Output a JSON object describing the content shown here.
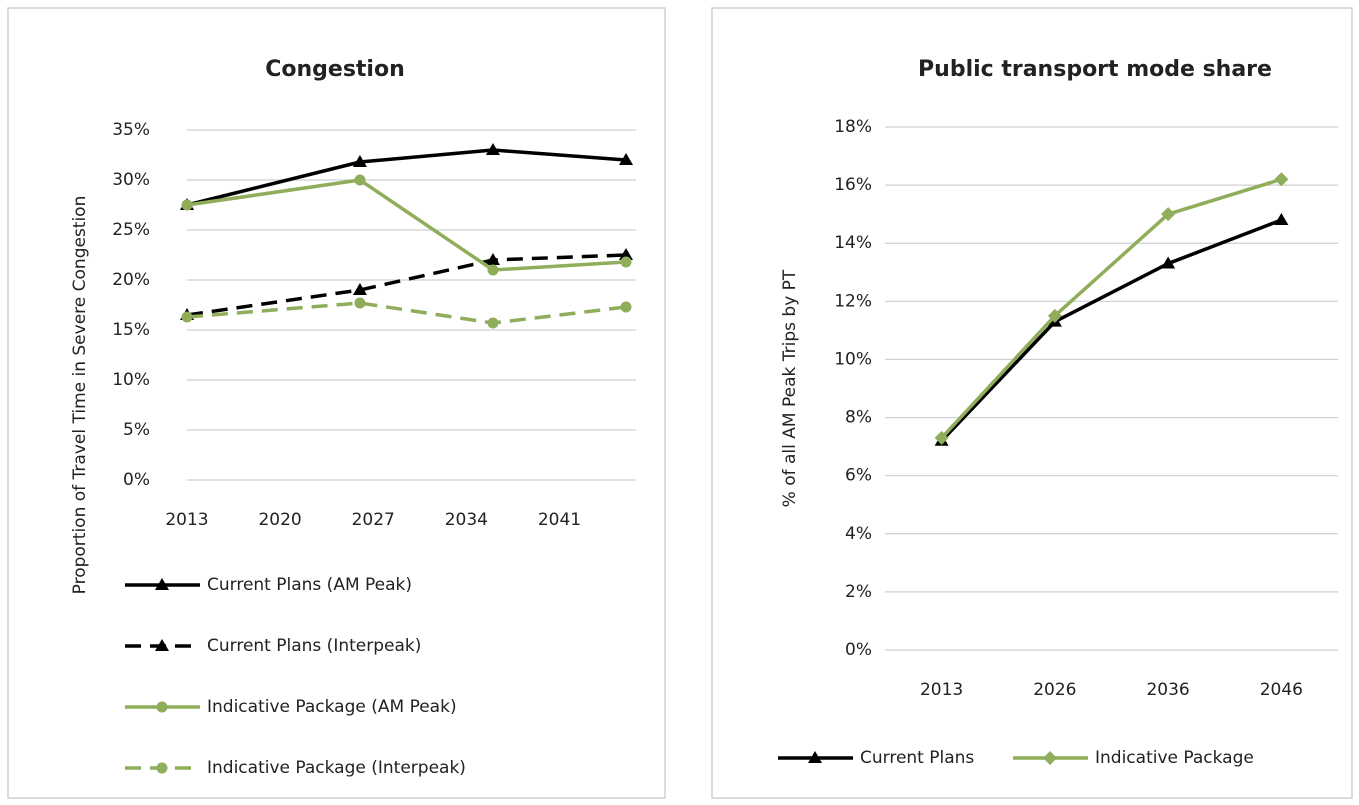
{
  "chart_data": [
    {
      "type": "line",
      "title": "Congestion",
      "y_label": "Proportion of Travel Time in Severe Congestion",
      "x": [
        2013,
        2026,
        2036,
        2046
      ],
      "xlim": [
        2013,
        2046
      ],
      "xticks": [
        2013,
        2020,
        2027,
        2034,
        2041
      ],
      "ylim": [
        0,
        35
      ],
      "yticks": [
        {
          "value": 0,
          "label": "0%"
        },
        {
          "value": 5,
          "label": "5%"
        },
        {
          "value": 10,
          "label": "10%"
        },
        {
          "value": 15,
          "label": "15%"
        },
        {
          "value": 20,
          "label": "20%"
        },
        {
          "value": 25,
          "label": "25%"
        },
        {
          "value": 30,
          "label": "30%"
        },
        {
          "value": 35,
          "label": "35%"
        }
      ],
      "grid": true,
      "legend": "bottom",
      "series": [
        {
          "name": "Current Plans (AM Peak)",
          "color": "#000000",
          "dash": false,
          "marker": "triangle",
          "values": [
            27.5,
            31.8,
            33,
            32
          ]
        },
        {
          "name": "Current Plans (Interpeak)",
          "color": "#000000",
          "dash": true,
          "marker": "triangle",
          "values": [
            16.5,
            19,
            22,
            22.5
          ]
        },
        {
          "name": "Indicative Package (AM Peak)",
          "color": "#8fad5a",
          "dash": false,
          "marker": "circle",
          "values": [
            27.5,
            30,
            21,
            21.8
          ]
        },
        {
          "name": "Indicative Package (Interpeak)",
          "color": "#8fad5a",
          "dash": true,
          "marker": "circle",
          "values": [
            16.3,
            17.7,
            15.7,
            17.3
          ]
        }
      ]
    },
    {
      "type": "line",
      "title": "Public transport mode share",
      "y_label": "% of all AM Peak Trips by PT",
      "categories": [
        "2013",
        "2026",
        "2036",
        "2046"
      ],
      "ylim": [
        0,
        18
      ],
      "yticks": [
        {
          "value": 0,
          "label": "0%"
        },
        {
          "value": 2,
          "label": "2%"
        },
        {
          "value": 4,
          "label": "4%"
        },
        {
          "value": 6,
          "label": "6%"
        },
        {
          "value": 8,
          "label": "8%"
        },
        {
          "value": 10,
          "label": "10%"
        },
        {
          "value": 12,
          "label": "12%"
        },
        {
          "value": 14,
          "label": "14%"
        },
        {
          "value": 16,
          "label": "16%"
        },
        {
          "value": 18,
          "label": "18%"
        }
      ],
      "grid": true,
      "legend": "bottom",
      "series": [
        {
          "name": "Current Plans",
          "color": "#000000",
          "dash": false,
          "marker": "triangle",
          "values": [
            7.2,
            11.3,
            13.3,
            14.8
          ]
        },
        {
          "name": "Indicative Package",
          "color": "#8fad5a",
          "dash": false,
          "marker": "diamond",
          "values": [
            7.3,
            11.5,
            15,
            16.2
          ]
        }
      ]
    }
  ]
}
